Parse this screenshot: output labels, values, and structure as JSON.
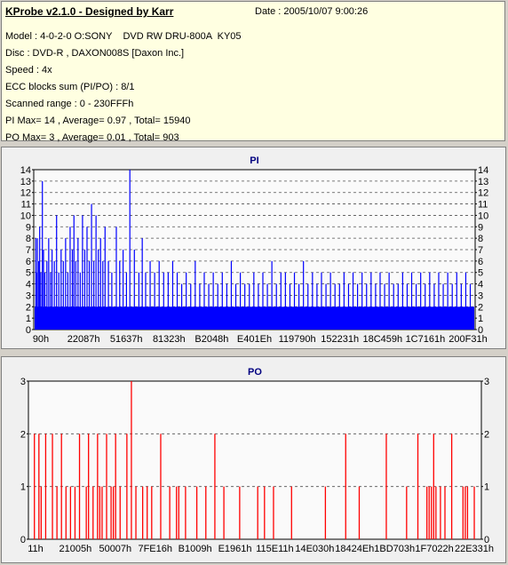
{
  "info": {
    "title": "KProbe v2.1.0 - Designed by Karr",
    "date": "Date : 2005/10/07 9:00:26",
    "lines": [
      "Model : 4-0-2-0 O:SONY    DVD RW DRU-800A  KY05",
      "Disc : DVD-R , DAXON008S [Daxon Inc.]",
      "Speed : 4x",
      "ECC blocks sum (PI/PO) : 8/1",
      "Scanned range : 0 - 230FFFh",
      "PI Max= 14 , Average= 0.97 , Total= 15940",
      "PO Max= 3 , Average= 0.01 , Total= 903"
    ]
  },
  "chart_data": [
    {
      "type": "bar",
      "title": "PI",
      "color": "#0000ff",
      "ylim": [
        0,
        14
      ],
      "yticks": [
        0,
        1,
        2,
        3,
        4,
        5,
        6,
        7,
        8,
        9,
        10,
        11,
        12,
        13,
        14
      ],
      "xtick_labels": [
        "90h",
        "22087h",
        "51637h",
        "81323h",
        "B2048h",
        "E401Eh",
        "119790h",
        "152231h",
        "18C459h",
        "1C7161h",
        "200F31h"
      ],
      "baseline": 2,
      "spikes": [
        [
          0.3,
          8
        ],
        [
          0.6,
          5
        ],
        [
          1,
          8
        ],
        [
          1.6,
          6
        ],
        [
          2,
          9
        ],
        [
          2.5,
          5
        ],
        [
          3.2,
          13
        ],
        [
          3.7,
          7
        ],
        [
          4.3,
          5
        ],
        [
          5.2,
          6
        ],
        [
          6,
          8
        ],
        [
          6.8,
          5
        ],
        [
          7.5,
          7
        ],
        [
          8.5,
          6
        ],
        [
          9.5,
          10
        ],
        [
          10.5,
          5
        ],
        [
          11.5,
          7
        ],
        [
          12.5,
          6
        ],
        [
          13.5,
          8
        ],
        [
          14.5,
          5
        ],
        [
          15.5,
          9
        ],
        [
          16.5,
          7
        ],
        [
          17.2,
          10
        ],
        [
          18,
          6
        ],
        [
          19,
          8
        ],
        [
          20,
          5
        ],
        [
          21,
          10
        ],
        [
          22,
          7
        ],
        [
          23,
          9
        ],
        [
          24,
          6
        ],
        [
          25,
          11
        ],
        [
          26,
          6
        ],
        [
          27,
          10
        ],
        [
          28,
          7
        ],
        [
          29,
          8
        ],
        [
          30,
          6
        ],
        [
          31,
          9
        ],
        [
          32.5,
          6
        ],
        [
          34,
          5
        ],
        [
          36,
          9
        ],
        [
          37.5,
          6
        ],
        [
          39,
          7
        ],
        [
          40.5,
          5
        ],
        [
          42,
          14
        ],
        [
          44,
          7
        ],
        [
          46,
          5
        ],
        [
          47.5,
          8
        ],
        [
          49,
          5
        ],
        [
          51,
          6
        ],
        [
          53,
          5
        ],
        [
          55,
          6
        ],
        [
          57,
          5
        ],
        [
          59,
          5
        ],
        [
          61,
          6
        ],
        [
          63,
          5
        ],
        [
          65,
          4
        ],
        [
          67,
          5
        ],
        [
          69,
          4
        ],
        [
          71,
          6
        ],
        [
          73,
          4
        ],
        [
          75,
          5
        ],
        [
          77,
          4
        ],
        [
          79,
          5
        ],
        [
          81,
          4
        ],
        [
          83,
          5
        ],
        [
          85,
          4
        ],
        [
          87,
          6
        ],
        [
          89,
          4
        ],
        [
          91,
          5
        ],
        [
          93,
          4
        ],
        [
          95,
          4
        ],
        [
          97,
          5
        ],
        [
          99,
          4
        ],
        [
          101,
          5
        ],
        [
          103,
          4
        ],
        [
          105,
          6
        ],
        [
          107,
          4
        ],
        [
          109,
          5
        ],
        [
          111,
          5
        ],
        [
          113,
          4
        ],
        [
          115,
          5
        ],
        [
          117,
          4
        ],
        [
          119,
          6
        ],
        [
          121,
          4
        ],
        [
          123,
          5
        ],
        [
          125,
          4
        ],
        [
          127,
          5
        ],
        [
          129,
          4
        ],
        [
          131,
          5
        ],
        [
          133,
          4
        ],
        [
          135,
          4
        ],
        [
          137,
          5
        ],
        [
          139,
          4
        ],
        [
          141,
          5
        ],
        [
          143,
          4
        ],
        [
          145,
          5
        ],
        [
          147,
          4
        ],
        [
          149,
          5
        ],
        [
          151,
          4
        ],
        [
          153,
          5
        ],
        [
          155,
          4
        ],
        [
          157,
          5
        ],
        [
          159,
          4
        ],
        [
          161,
          4
        ],
        [
          163,
          5
        ],
        [
          165,
          4
        ],
        [
          167,
          5
        ],
        [
          169,
          4
        ],
        [
          171,
          5
        ],
        [
          173,
          4
        ],
        [
          175,
          5
        ],
        [
          177,
          4
        ],
        [
          179,
          5
        ],
        [
          181,
          4
        ],
        [
          183,
          5
        ],
        [
          185,
          4
        ],
        [
          187,
          5
        ],
        [
          189,
          4
        ],
        [
          191,
          5
        ],
        [
          193,
          4
        ]
      ]
    },
    {
      "type": "bar",
      "title": "PO",
      "color": "#ff0000",
      "ylim": [
        0,
        3
      ],
      "yticks": [
        0,
        1,
        2,
        3
      ],
      "xtick_labels": [
        "11h",
        "21005h",
        "50007h",
        "7FE16h",
        "B1009h",
        "E1961h",
        "115E11h",
        "14E030h",
        "18424Eh",
        "1BD703h",
        "1F7022h",
        "22E331h"
      ],
      "bars": [
        [
          0.01,
          2
        ],
        [
          0.02,
          2
        ],
        [
          0.025,
          1
        ],
        [
          0.035,
          2
        ],
        [
          0.05,
          2
        ],
        [
          0.06,
          1
        ],
        [
          0.07,
          2
        ],
        [
          0.08,
          1
        ],
        [
          0.09,
          1
        ],
        [
          0.1,
          1
        ],
        [
          0.11,
          2
        ],
        [
          0.125,
          1
        ],
        [
          0.13,
          2
        ],
        [
          0.14,
          1
        ],
        [
          0.15,
          2
        ],
        [
          0.155,
          1
        ],
        [
          0.16,
          1
        ],
        [
          0.17,
          2
        ],
        [
          0.18,
          1
        ],
        [
          0.185,
          1
        ],
        [
          0.19,
          2
        ],
        [
          0.2,
          1
        ],
        [
          0.215,
          2
        ],
        [
          0.225,
          3
        ],
        [
          0.235,
          1
        ],
        [
          0.25,
          1
        ],
        [
          0.26,
          1
        ],
        [
          0.27,
          1
        ],
        [
          0.29,
          2
        ],
        [
          0.31,
          1
        ],
        [
          0.325,
          1
        ],
        [
          0.33,
          1
        ],
        [
          0.345,
          1
        ],
        [
          0.37,
          1
        ],
        [
          0.39,
          1
        ],
        [
          0.41,
          2
        ],
        [
          0.43,
          1
        ],
        [
          0.465,
          1
        ],
        [
          0.505,
          1
        ],
        [
          0.52,
          1
        ],
        [
          0.54,
          1
        ],
        [
          0.58,
          1
        ],
        [
          0.655,
          1
        ],
        [
          0.7,
          2
        ],
        [
          0.73,
          1
        ],
        [
          0.79,
          2
        ],
        [
          0.835,
          1
        ],
        [
          0.86,
          2
        ],
        [
          0.88,
          1
        ],
        [
          0.885,
          1
        ],
        [
          0.89,
          1
        ],
        [
          0.895,
          2
        ],
        [
          0.9,
          1
        ],
        [
          0.91,
          1
        ],
        [
          0.92,
          1
        ],
        [
          0.935,
          2
        ],
        [
          0.96,
          1
        ],
        [
          0.965,
          1
        ],
        [
          0.97,
          1
        ],
        [
          0.985,
          1
        ]
      ]
    }
  ]
}
